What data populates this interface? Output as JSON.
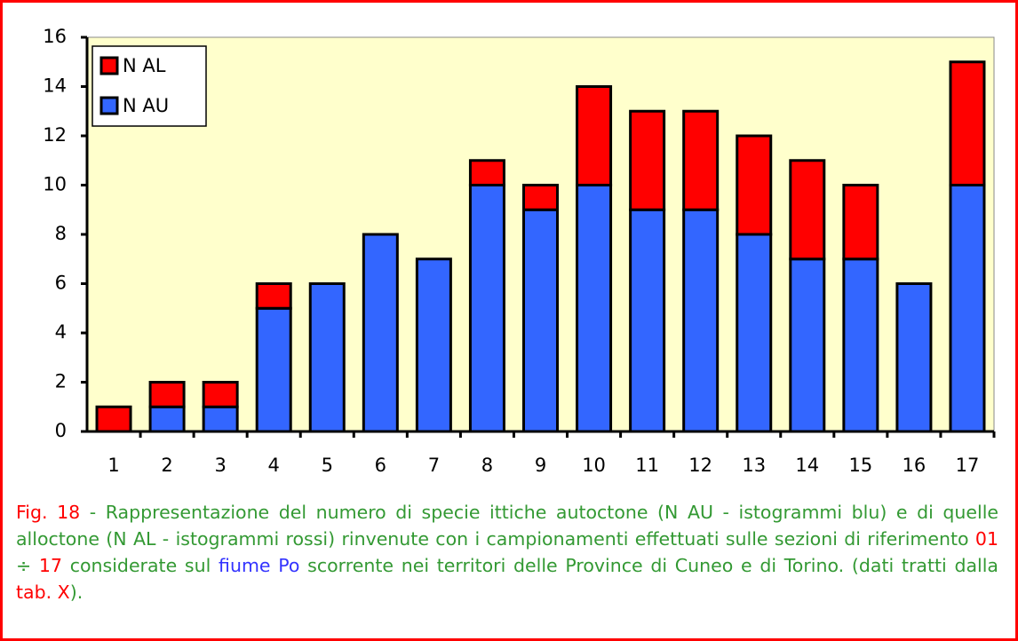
{
  "chart_data": {
    "type": "stacked_bar",
    "categories": [
      "1",
      "2",
      "3",
      "4",
      "5",
      "6",
      "7",
      "8",
      "9",
      "10",
      "11",
      "12",
      "13",
      "14",
      "15",
      "16",
      "17"
    ],
    "series": [
      {
        "name": "N AU",
        "color": "#3366ff",
        "values": [
          0,
          1,
          1,
          5,
          6,
          8,
          7,
          10,
          9,
          10,
          9,
          9,
          8,
          7,
          7,
          6,
          10
        ]
      },
      {
        "name": "N AL",
        "color": "#ff0000",
        "values": [
          1,
          1,
          1,
          1,
          0,
          0,
          0,
          1,
          1,
          4,
          4,
          4,
          4,
          4,
          3,
          0,
          5
        ]
      }
    ],
    "ylim": [
      0,
      16
    ],
    "yticks": [
      0,
      2,
      4,
      6,
      8,
      10,
      12,
      14,
      16
    ],
    "legend": "top-left",
    "grid": false
  },
  "caption": [
    {
      "text": "Fig. 18",
      "color": "#ff0000"
    },
    {
      "text": " - Rappresentazione del numero di specie ittiche autoctone (N AU - istogrammi blu) e di quelle alloctone (N AL - istogrammi rossi) rinvenute con i campionamenti effettuati sulle sezioni di riferimento ",
      "color": "#339933"
    },
    {
      "text": "01",
      "color": "#ff0000"
    },
    {
      "text": " ÷ ",
      "color": "#339933"
    },
    {
      "text": "17",
      "color": "#ff0000"
    },
    {
      "text": " considerate sul ",
      "color": "#339933"
    },
    {
      "text": "fiume Po",
      "color": "#3333ff"
    },
    {
      "text": " scorrente nei territori delle Province di Cuneo e di Torino. (dati tratti dalla ",
      "color": "#339933"
    },
    {
      "text": "tab. X",
      "color": "#ff0000"
    },
    {
      "text": ").",
      "color": "#339933"
    }
  ]
}
